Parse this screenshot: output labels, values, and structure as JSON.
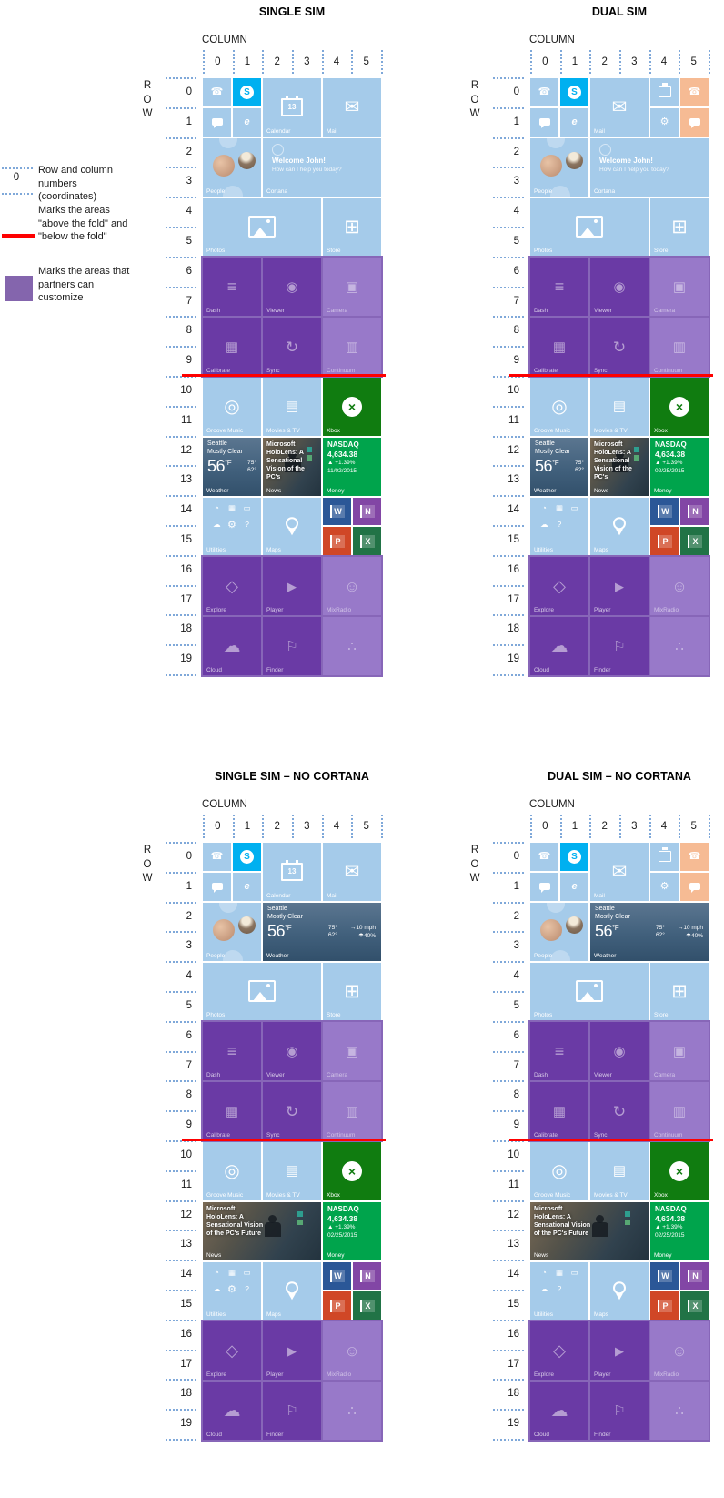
{
  "legend": {
    "items": [
      {
        "symbol": "coordinate-dotted-lines",
        "sample": "0",
        "label": "Row and column numbers (coordinates)"
      },
      {
        "symbol": "red-line",
        "label": "Marks the areas \"above the fold\" and \"below the fold\""
      },
      {
        "symbol": "purple-swatch",
        "label": "Marks the areas that partners can customize"
      }
    ]
  },
  "grid": {
    "column_label": "COLUMN",
    "row_label_chars": [
      "R",
      "O",
      "W"
    ],
    "column_numbers": [
      "0",
      "1",
      "2",
      "3",
      "4",
      "5"
    ],
    "row_numbers": [
      "0",
      "1",
      "2",
      "3",
      "4",
      "5",
      "6",
      "7",
      "8",
      "9",
      "10",
      "11",
      "12",
      "13",
      "14",
      "15",
      "16",
      "17",
      "18",
      "19"
    ]
  },
  "colors": {
    "tile_blue": "#a5cbea",
    "skype_cyan": "#00b0f0",
    "peach": "#f6bb94",
    "xbox_green": "#107c10",
    "money_green": "#00a44c",
    "partner_region": "#8766b8",
    "partner_tile_dark": "#6a3aa5",
    "partner_tile_light": "#9879c9",
    "fold_red": "#fe0000",
    "coordinate_blue": "#7fa8d9",
    "word_blue": "#2b5797",
    "onenote_purple": "#8246a5",
    "powerpoint_orange": "#d04726",
    "excel_green": "#217346"
  },
  "icons": {
    "phone-icon": "☎",
    "skype-icon": "S",
    "edge-icon": "e",
    "mail-icon": "✉",
    "settings-icon": "⚙",
    "store-icon": "⊞",
    "xbox-icon": "×",
    "dash-icon": "≡",
    "viewer-icon": "◉",
    "camera-icon": "▣",
    "calibrate-icon": "▦",
    "sync-icon": "↻",
    "continuum-icon": "▥",
    "groove-icon": "◎",
    "movies-icon": "▤",
    "explore-icon": "◇",
    "player-icon": "▶",
    "mixradio-icon": "☺",
    "cloud-icon": "☁",
    "finder-icon": "⚐",
    "share-icon": "∴",
    "alarm-icon": "◔",
    "calculator-icon": "▦",
    "file-explorer-icon": "▭",
    "onedrive-icon": "☁",
    "help-icon": "?",
    "wind-icon": "→",
    "precip-icon": "☂"
  },
  "utilities_sets": {
    "single": [
      "alarm-icon",
      "calculator-icon",
      "file-explorer-icon",
      "onedrive-icon",
      "settings-icon",
      "help-icon"
    ],
    "dual": [
      "alarm-icon",
      "calculator-icon",
      "file-explorer-icon",
      "onedrive-icon",
      "help-icon"
    ]
  },
  "tiles": {
    "phone": {
      "type": "icon",
      "variant": "blue",
      "icon": "phone-icon",
      "label": ""
    },
    "skype": {
      "type": "skype",
      "variant": "skype",
      "label": ""
    },
    "messaging": {
      "type": "bubble",
      "variant": "blue",
      "label": ""
    },
    "edge": {
      "type": "icon",
      "variant": "blue",
      "icon": "edge-icon",
      "label": ""
    },
    "calendar_m": {
      "type": "calendar",
      "variant": "blue",
      "day": "13",
      "label": "Calendar"
    },
    "calendar_s": {
      "type": "calendar",
      "variant": "blue",
      "day": "",
      "label": ""
    },
    "mail_m": {
      "type": "icon",
      "variant": "blue",
      "icon": "mail-icon",
      "label": "Mail"
    },
    "settings": {
      "type": "icon",
      "variant": "blue",
      "icon": "settings-icon",
      "label": ""
    },
    "phone2": {
      "type": "icon",
      "variant": "peach",
      "icon": "phone-icon",
      "label": ""
    },
    "messaging2": {
      "type": "bubble",
      "variant": "peach",
      "label": ""
    },
    "people": {
      "type": "people",
      "variant": "blue",
      "label": "People"
    },
    "cortana": {
      "type": "cortana",
      "variant": "blue",
      "line1": "Welcome John!",
      "line2": "How can I help you today?",
      "label": "Cortana"
    },
    "photos": {
      "type": "photos",
      "variant": "blue",
      "label": "Photos"
    },
    "store": {
      "type": "icon",
      "variant": "blue",
      "icon": "store-icon",
      "label": "Store"
    },
    "dash": {
      "type": "icon",
      "variant": "pdark",
      "icon": "dash-icon",
      "label": "Dash"
    },
    "viewer": {
      "type": "icon",
      "variant": "pdark",
      "icon": "viewer-icon",
      "label": "Viewer"
    },
    "camera": {
      "type": "icon",
      "variant": "plight",
      "icon": "camera-icon",
      "label": "Camera"
    },
    "calibrate": {
      "type": "icon",
      "variant": "pdark",
      "icon": "calibrate-icon",
      "label": "Calibrate"
    },
    "sync": {
      "type": "icon",
      "variant": "pdark",
      "icon": "sync-icon",
      "label": "Sync"
    },
    "continuum": {
      "type": "icon",
      "variant": "plight",
      "icon": "continuum-icon",
      "label": "Continuum"
    },
    "groove": {
      "type": "icon",
      "variant": "blue",
      "icon": "groove-icon",
      "label": "Groove Music"
    },
    "movies": {
      "type": "icon",
      "variant": "blue",
      "icon": "movies-icon",
      "label": "Movies & TV"
    },
    "xbox": {
      "type": "xbox",
      "variant": "xbox",
      "label": "Xbox"
    },
    "weather_m": {
      "type": "weather",
      "variant": "weather",
      "city": "Seattle",
      "condition": "Mostly Clear",
      "temp": "56",
      "unit": "°F",
      "high": "75°",
      "low": "62°",
      "label": "Weather"
    },
    "weather_w": {
      "type": "weather",
      "variant": "weather",
      "wide": true,
      "city": "Seattle",
      "condition": "Mostly Clear",
      "temp": "56",
      "unit": "°F",
      "high": "75°",
      "low": "62°",
      "wind": "10 mph",
      "precip": "40%",
      "label": "Weather"
    },
    "news_m": {
      "type": "news",
      "variant": "news",
      "headline": "Microsoft HoloLens: A Sensational Vision of the PC's",
      "label": "News"
    },
    "news_w": {
      "type": "news",
      "variant": "news",
      "wide": true,
      "headline": "Microsoft HoloLens: A Sensational Vision of the PC's Future",
      "label": "News"
    },
    "money": {
      "type": "money",
      "variant": "money",
      "index": "NASDAQ",
      "value": "4,634.38",
      "change": "▲ +1.39%",
      "label": "Money"
    },
    "utilities": {
      "type": "utilities",
      "variant": "blue",
      "label": "Utilities"
    },
    "maps": {
      "type": "maps",
      "variant": "blue",
      "label": "Maps"
    },
    "word": {
      "type": "letter",
      "variant": "word",
      "icon": "word-letter",
      "letter": "W",
      "label": ""
    },
    "onenote": {
      "type": "letter",
      "variant": "onenote",
      "icon": "onenote-letter",
      "letter": "N",
      "label": ""
    },
    "powerpoint": {
      "type": "letter",
      "variant": "powerpoint",
      "icon": "powerpoint-letter",
      "letter": "P",
      "label": ""
    },
    "excel": {
      "type": "letter",
      "variant": "excel",
      "icon": "excel-letter",
      "letter": "X",
      "label": ""
    },
    "explore": {
      "type": "icon",
      "variant": "pdark",
      "icon": "explore-icon",
      "label": "Explore"
    },
    "player": {
      "type": "icon",
      "variant": "pdark",
      "icon": "player-icon",
      "label": "Player"
    },
    "mixradio": {
      "type": "icon",
      "variant": "plight",
      "icon": "mixradio-icon",
      "label": "MixRadio"
    },
    "cloud": {
      "type": "icon",
      "variant": "pdark",
      "icon": "cloud-icon",
      "label": "Cloud"
    },
    "finder": {
      "type": "icon",
      "variant": "pdark",
      "icon": "finder-icon",
      "label": "Finder"
    },
    "partner_extra": {
      "type": "icon",
      "variant": "plight",
      "icon": "share-icon",
      "label": ""
    }
  },
  "layouts": {
    "top_single": [
      {
        "t": "phone",
        "c": 0,
        "r": 0,
        "w": 1,
        "h": 1
      },
      {
        "t": "skype",
        "c": 1,
        "r": 0,
        "w": 1,
        "h": 1
      },
      {
        "t": "messaging",
        "c": 0,
        "r": 1,
        "w": 1,
        "h": 1
      },
      {
        "t": "edge",
        "c": 1,
        "r": 1,
        "w": 1,
        "h": 1
      },
      {
        "t": "calendar_m",
        "c": 2,
        "r": 0
      },
      {
        "t": "mail_m",
        "c": 4,
        "r": 0
      }
    ],
    "top_dual": [
      {
        "t": "phone",
        "c": 0,
        "r": 0,
        "w": 1,
        "h": 1
      },
      {
        "t": "skype",
        "c": 1,
        "r": 0,
        "w": 1,
        "h": 1
      },
      {
        "t": "messaging",
        "c": 0,
        "r": 1,
        "w": 1,
        "h": 1
      },
      {
        "t": "edge",
        "c": 1,
        "r": 1,
        "w": 1,
        "h": 1
      },
      {
        "t": "mail_m",
        "c": 2,
        "r": 0
      },
      {
        "t": "calendar_s",
        "c": 4,
        "r": 0,
        "w": 1,
        "h": 1
      },
      {
        "t": "phone2",
        "c": 5,
        "r": 0,
        "w": 1,
        "h": 1
      },
      {
        "t": "settings",
        "c": 4,
        "r": 1,
        "w": 1,
        "h": 1
      },
      {
        "t": "messaging2",
        "c": 5,
        "r": 1,
        "w": 1,
        "h": 1
      }
    ],
    "people_cortana": [
      {
        "t": "people",
        "c": 0,
        "r": 2
      },
      {
        "t": "cortana",
        "c": 2,
        "r": 2,
        "w": 4
      }
    ],
    "people_weather": [
      {
        "t": "people",
        "c": 0,
        "r": 2
      },
      {
        "t": "weather_w",
        "c": 2,
        "r": 2,
        "w": 4
      }
    ],
    "photos_store": [
      {
        "t": "photos",
        "c": 0,
        "r": 4,
        "w": 4
      },
      {
        "t": "store",
        "c": 4,
        "r": 4
      }
    ],
    "partner_top": [
      {
        "t": "dash",
        "c": 0,
        "r": 6
      },
      {
        "t": "viewer",
        "c": 2,
        "r": 6
      },
      {
        "t": "camera",
        "c": 4,
        "r": 6
      },
      {
        "t": "calibrate",
        "c": 0,
        "r": 8
      },
      {
        "t": "sync",
        "c": 2,
        "r": 8
      },
      {
        "t": "continuum",
        "c": 4,
        "r": 8
      }
    ],
    "media": [
      {
        "t": "groove",
        "c": 0,
        "r": 10
      },
      {
        "t": "movies",
        "c": 2,
        "r": 10
      },
      {
        "t": "xbox",
        "c": 4,
        "r": 10
      }
    ],
    "info_cortana": [
      {
        "t": "weather_m",
        "c": 0,
        "r": 12
      },
      {
        "t": "news_m",
        "c": 2,
        "r": 12
      },
      {
        "t": "money",
        "c": 4,
        "r": 12
      }
    ],
    "info_nocortana": [
      {
        "t": "news_w",
        "c": 0,
        "r": 12,
        "w": 4
      },
      {
        "t": "money",
        "c": 4,
        "r": 12
      }
    ],
    "tools": [
      {
        "t": "utilities",
        "c": 0,
        "r": 14
      },
      {
        "t": "maps",
        "c": 2,
        "r": 14
      },
      {
        "t": "word",
        "c": 4,
        "r": 14,
        "w": 1,
        "h": 1
      },
      {
        "t": "onenote",
        "c": 5,
        "r": 14,
        "w": 1,
        "h": 1
      },
      {
        "t": "powerpoint",
        "c": 4,
        "r": 15,
        "w": 1,
        "h": 1
      },
      {
        "t": "excel",
        "c": 5,
        "r": 15,
        "w": 1,
        "h": 1
      }
    ],
    "partner_bottom": [
      {
        "t": "explore",
        "c": 0,
        "r": 16
      },
      {
        "t": "player",
        "c": 2,
        "r": 16
      },
      {
        "t": "mixradio",
        "c": 4,
        "r": 16
      },
      {
        "t": "cloud",
        "c": 0,
        "r": 18
      },
      {
        "t": "finder",
        "c": 2,
        "r": 18
      },
      {
        "t": "partner_extra",
        "c": 4,
        "r": 18
      }
    ]
  },
  "boards": [
    {
      "id": "single-sim",
      "title": "SINGLE SIM",
      "money_date": "11/02/2015",
      "utilities": "single",
      "sections": [
        "top_single",
        "people_cortana",
        "photos_store",
        "partner_top",
        "media",
        "info_cortana",
        "tools",
        "partner_bottom"
      ]
    },
    {
      "id": "dual-sim",
      "title": "DUAL SIM",
      "money_date": "02/25/2015",
      "utilities": "dual",
      "sections": [
        "top_dual",
        "people_cortana",
        "photos_store",
        "partner_top",
        "media",
        "info_cortana",
        "tools",
        "partner_bottom"
      ]
    },
    {
      "id": "single-sim-no-cortana",
      "title": "SINGLE SIM – NO CORTANA",
      "money_date": "02/25/2015",
      "utilities": "single",
      "sections": [
        "top_single",
        "people_weather",
        "photos_store",
        "partner_top",
        "media",
        "info_nocortana",
        "tools",
        "partner_bottom"
      ]
    },
    {
      "id": "dual-sim-no-cortana",
      "title": "DUAL SIM – NO CORTANA",
      "money_date": "02/25/2015",
      "utilities": "dual",
      "sections": [
        "top_dual",
        "people_weather",
        "photos_store",
        "partner_top",
        "media",
        "info_nocortana",
        "tools",
        "partner_bottom"
      ]
    }
  ]
}
